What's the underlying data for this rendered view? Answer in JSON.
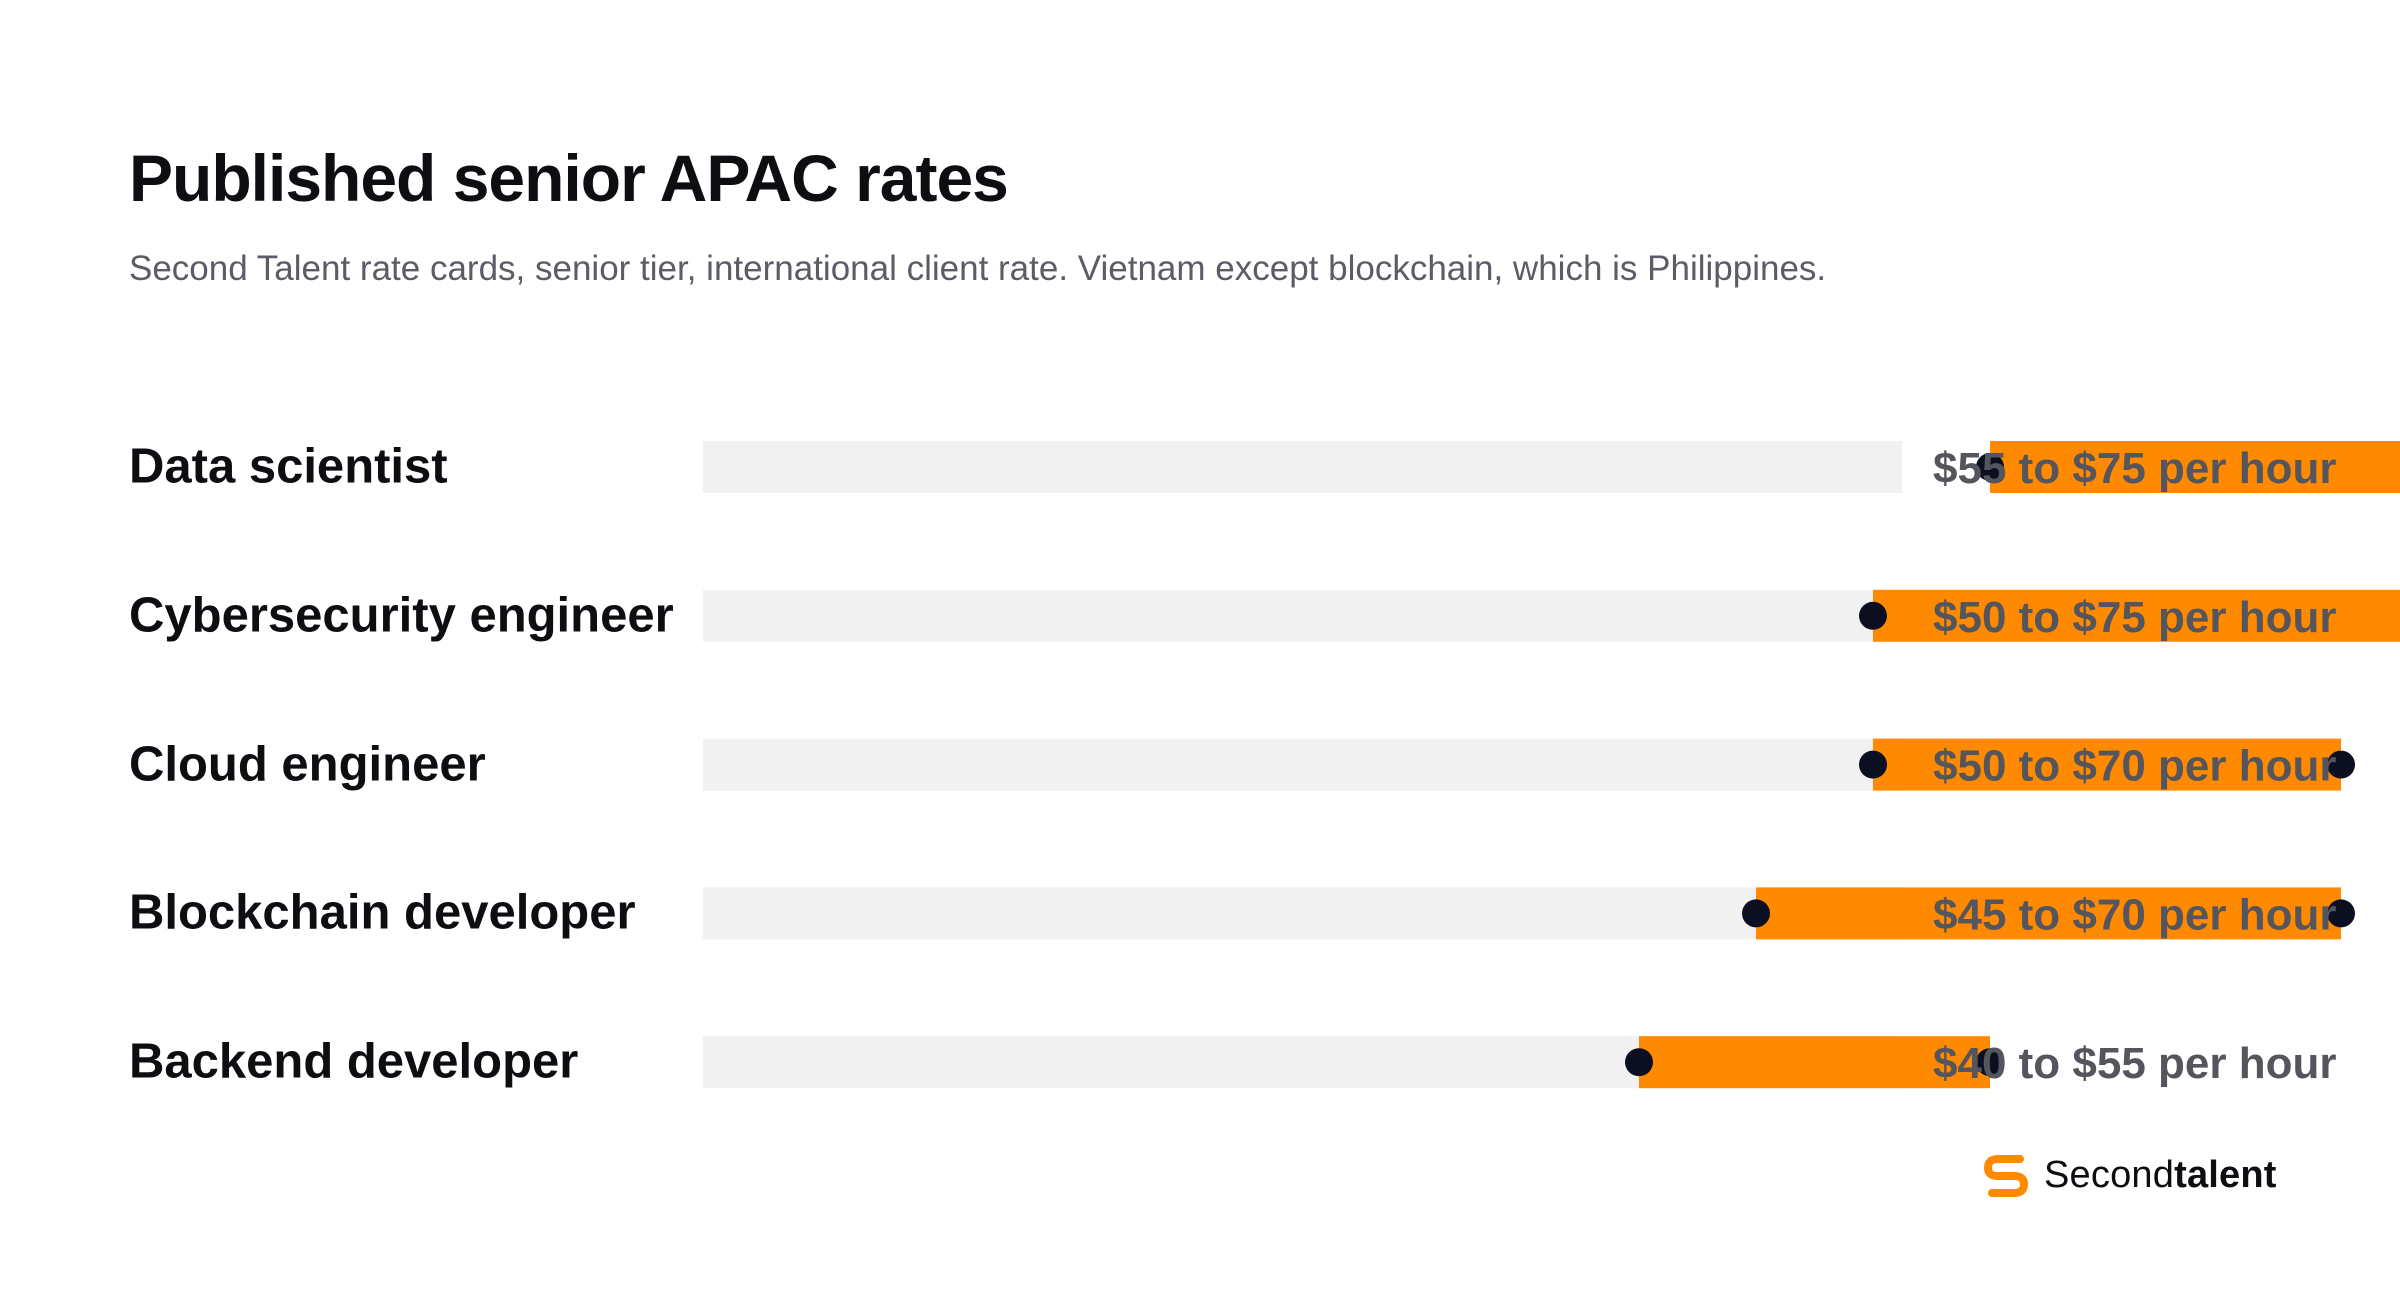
{
  "header": {
    "title": "Published senior APAC rates",
    "subtitle": "Second Talent rate cards, senior tier, international client rate. Vietnam except blockchain, which is Philippines."
  },
  "chart_data": {
    "type": "range-bar",
    "title": "Published senior APAC rates",
    "subtitle": "Second Talent rate cards, senior tier, international client rate. Vietnam except blockchain, which is Philippines.",
    "unit": "USD per hour",
    "xlim": [
      0,
      76
    ],
    "grid": false,
    "legend": "none",
    "rows": [
      {
        "label": "Data scientist",
        "low": 55,
        "high": 75,
        "value_label": "$55 to $75 per hour"
      },
      {
        "label": "Cybersecurity engineer",
        "low": 50,
        "high": 75,
        "value_label": "$50 to $75 per hour"
      },
      {
        "label": "Cloud engineer",
        "low": 50,
        "high": 70,
        "value_label": "$50 to $70 per hour"
      },
      {
        "label": "Blockchain developer",
        "low": 45,
        "high": 70,
        "value_label": "$45 to $70 per hour"
      },
      {
        "label": "Backend developer",
        "low": 40,
        "high": 55,
        "value_label": "$40 to $55 per hour"
      }
    ],
    "colors": {
      "track": "#f0f1f0",
      "range": "#ff8a00",
      "endpoint": "#0b0f1f",
      "value_text": "#55555e"
    }
  },
  "brand": {
    "name_light": "Second",
    "name_bold": "talent",
    "logo_icon": "secondtalent-s-icon",
    "color": "#ff8a00"
  }
}
